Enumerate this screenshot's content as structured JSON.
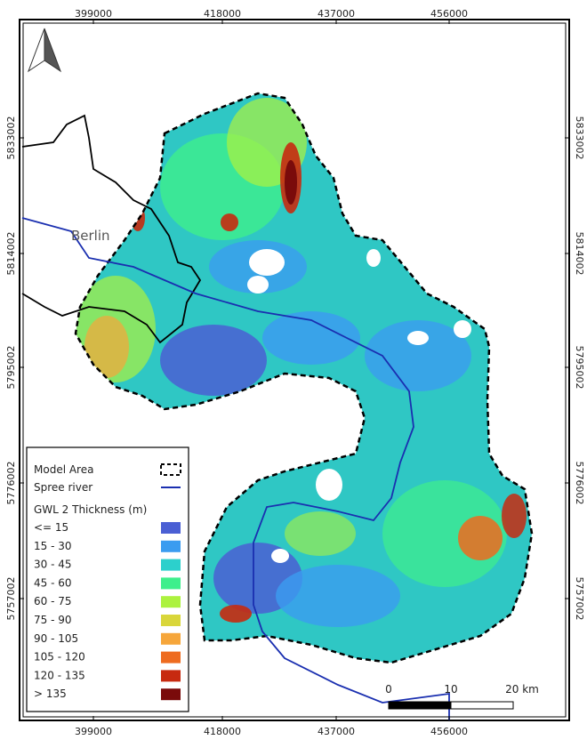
{
  "coordinates": {
    "top": [
      "399000",
      "418000",
      "437000",
      "456000"
    ],
    "bottom": [
      "399000",
      "418000",
      "437000",
      "456000"
    ],
    "left": [
      "5833002",
      "5814002",
      "5795002",
      "5776002",
      "5757002"
    ],
    "right": [
      "5833002",
      "5814002",
      "5795002",
      "5776002",
      "5757002"
    ]
  },
  "labels": {
    "city": "Berlin"
  },
  "legend": {
    "model_area": "Model Area",
    "river": "Spree river",
    "title": "GWL 2 Thickness (m)",
    "classes": [
      {
        "label": "<= 15",
        "color": "#4a5fd4"
      },
      {
        "label": "15 - 30",
        "color": "#3b9cf0"
      },
      {
        "label": "30 - 45",
        "color": "#2cd0cc"
      },
      {
        "label": "45 - 60",
        "color": "#3eef8c"
      },
      {
        "label": "60 - 75",
        "color": "#acf23e"
      },
      {
        "label": "75 - 90",
        "color": "#d9d63a"
      },
      {
        "label": "90 - 105",
        "color": "#f6a63b"
      },
      {
        "label": "105 - 120",
        "color": "#ee6b1f"
      },
      {
        "label": "120 - 135",
        "color": "#c72a10"
      },
      {
        "label": "> 135",
        "color": "#7a0b0b"
      }
    ]
  },
  "scale_bar": {
    "labels": [
      "0",
      "10",
      "20 km"
    ]
  }
}
